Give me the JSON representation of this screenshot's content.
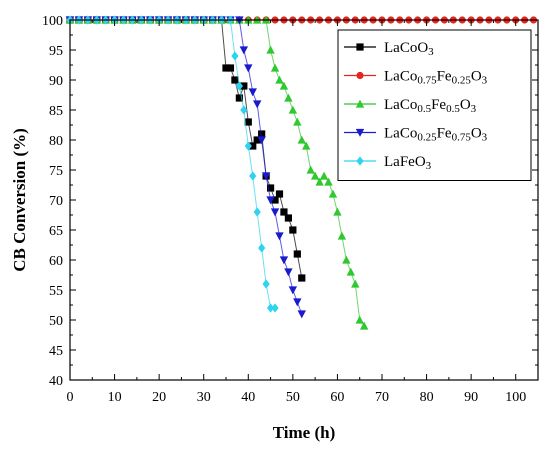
{
  "chart_data": {
    "type": "line",
    "xlabel": "Time (h)",
    "ylabel": "CB Conversion (%)",
    "xlim": [
      0,
      105
    ],
    "ylim": [
      40,
      100
    ],
    "xticks": [
      0,
      10,
      20,
      30,
      40,
      50,
      60,
      70,
      80,
      90,
      100
    ],
    "yticks": [
      40,
      45,
      50,
      55,
      60,
      65,
      70,
      75,
      80,
      85,
      90,
      95,
      100
    ],
    "grid": false,
    "legend_position": "top-right",
    "series": [
      {
        "name": "LaCoO3",
        "legend": {
          "base": "LaCoO",
          "sub": "3",
          "tail": "",
          "sub2": "",
          "tail2": "",
          "sub3": ""
        },
        "color": "#000000",
        "marker": "square",
        "x": [
          0,
          2,
          4,
          6,
          8,
          10,
          12,
          14,
          16,
          18,
          20,
          22,
          24,
          26,
          28,
          30,
          32,
          34,
          35,
          36,
          37,
          38,
          39,
          40,
          41,
          42,
          43,
          44,
          45,
          46,
          47,
          48,
          49,
          50,
          51,
          52
        ],
        "y": [
          100,
          100,
          100,
          100,
          100,
          100,
          100,
          100,
          100,
          100,
          100,
          100,
          100,
          100,
          100,
          100,
          100,
          100,
          92,
          92,
          90,
          87,
          89,
          83,
          79,
          80,
          81,
          74,
          72,
          70,
          71,
          68,
          67,
          65,
          61,
          57
        ]
      },
      {
        "name": "LaCo0.75Fe0.25O3",
        "legend": {
          "base": "LaCo",
          "sub": "0.75",
          "tail": "Fe",
          "sub2": "0.25",
          "tail2": "O",
          "sub3": "3"
        },
        "color": "#e8241c",
        "marker": "circle",
        "x": [
          0,
          2,
          4,
          6,
          8,
          10,
          12,
          14,
          16,
          18,
          20,
          22,
          24,
          26,
          28,
          30,
          32,
          34,
          36,
          38,
          40,
          42,
          44,
          46,
          48,
          50,
          52,
          54,
          56,
          58,
          60,
          62,
          64,
          66,
          68,
          70,
          72,
          74,
          76,
          78,
          80,
          82,
          84,
          86,
          88,
          90,
          92,
          94,
          96,
          98,
          100,
          102,
          104
        ],
        "y": [
          100,
          100,
          100,
          100,
          100,
          100,
          100,
          100,
          100,
          100,
          100,
          100,
          100,
          100,
          100,
          100,
          100,
          100,
          100,
          100,
          100,
          100,
          100,
          100,
          100,
          100,
          100,
          100,
          100,
          100,
          100,
          100,
          100,
          100,
          100,
          100,
          100,
          100,
          100,
          100,
          100,
          100,
          100,
          100,
          100,
          100,
          100,
          100,
          100,
          100,
          100,
          100,
          100
        ]
      },
      {
        "name": "LaCo0.5Fe0.5O3",
        "legend": {
          "base": "LaCo",
          "sub": "0.5",
          "tail": "Fe",
          "sub2": "0.5",
          "tail2": "O",
          "sub3": "3"
        },
        "color": "#2fc82f",
        "marker": "triangle-up",
        "x": [
          0,
          2,
          4,
          6,
          8,
          10,
          12,
          14,
          16,
          18,
          20,
          22,
          24,
          26,
          28,
          30,
          32,
          34,
          36,
          38,
          40,
          42,
          44,
          45,
          46,
          47,
          48,
          49,
          50,
          51,
          52,
          53,
          54,
          55,
          56,
          57,
          58,
          59,
          60,
          61,
          62,
          63,
          64,
          65,
          66
        ],
        "y": [
          100,
          100,
          100,
          100,
          100,
          100,
          100,
          100,
          100,
          100,
          100,
          100,
          100,
          100,
          100,
          100,
          100,
          100,
          100,
          100,
          100,
          100,
          100,
          95,
          92,
          90,
          89,
          87,
          85,
          83,
          80,
          79,
          75,
          74,
          73,
          74,
          73,
          71,
          68,
          64,
          60,
          58,
          56,
          50,
          49
        ]
      },
      {
        "name": "LaCo0.25Fe0.75O3",
        "legend": {
          "base": "LaCo",
          "sub": "0.25",
          "tail": "Fe",
          "sub2": "0.75",
          "tail2": "O",
          "sub3": "3"
        },
        "color": "#1a1acf",
        "marker": "triangle-down",
        "x": [
          0,
          2,
          4,
          6,
          8,
          10,
          12,
          14,
          16,
          18,
          20,
          22,
          24,
          26,
          28,
          30,
          32,
          34,
          36,
          38,
          39,
          40,
          41,
          42,
          43,
          44,
          45,
          46,
          47,
          48,
          49,
          50,
          51,
          52
        ],
        "y": [
          100,
          100,
          100,
          100,
          100,
          100,
          100,
          100,
          100,
          100,
          100,
          100,
          100,
          100,
          100,
          100,
          100,
          100,
          100,
          100,
          95,
          92,
          88,
          86,
          80,
          74,
          70,
          68,
          64,
          60,
          58,
          55,
          53,
          51
        ]
      },
      {
        "name": "LaFeO3",
        "legend": {
          "base": "LaFeO",
          "sub": "3",
          "tail": "",
          "sub2": "",
          "tail2": "",
          "sub3": ""
        },
        "color": "#2ed3ee",
        "marker": "diamond",
        "x": [
          0,
          2,
          4,
          6,
          8,
          10,
          12,
          14,
          16,
          18,
          20,
          22,
          24,
          26,
          28,
          30,
          32,
          34,
          36,
          37,
          38,
          39,
          40,
          41,
          42,
          43,
          44,
          45,
          46
        ],
        "y": [
          100,
          100,
          100,
          100,
          100,
          100,
          100,
          100,
          100,
          100,
          100,
          100,
          100,
          100,
          100,
          100,
          100,
          100,
          100,
          94,
          89,
          85,
          79,
          74,
          68,
          62,
          56,
          52,
          52
        ]
      }
    ]
  }
}
